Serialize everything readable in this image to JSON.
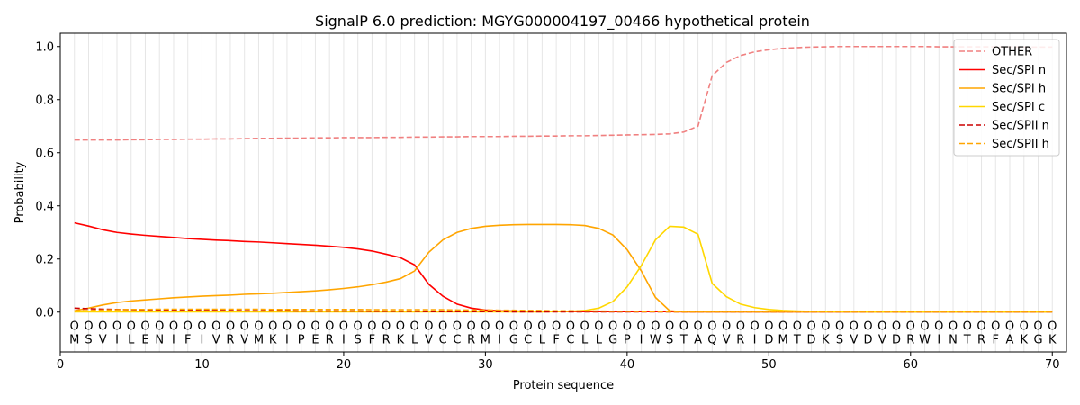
{
  "chart_data": {
    "type": "line",
    "title": "SignalP 6.0 prediction: MGYG000004197_00466 hypothetical protein",
    "xlabel": "Protein sequence",
    "ylabel": "Probability",
    "xlim": [
      0,
      71
    ],
    "ylim": [
      -0.15,
      1.05
    ],
    "x_ticks": [
      0,
      10,
      20,
      30,
      40,
      50,
      60,
      70
    ],
    "y_ticks": [
      0.0,
      0.2,
      0.4,
      0.6,
      0.8,
      1.0
    ],
    "x_tick_labels": [
      "0",
      "10",
      "20",
      "30",
      "40",
      "50",
      "60",
      "70"
    ],
    "y_tick_labels": [
      "0.0",
      "0.2",
      "0.4",
      "0.6",
      "0.8",
      "1.0"
    ],
    "grid": "vertical lines at each residue",
    "legend_position": "top-right",
    "sequence": "MSVILENIFIVRVMKIPERISFRKLVCCRMIGCLFCLLGPIWSTAQVRIDMTDKSVDVDRWINTRFAKGK",
    "region_marker": "O",
    "series": [
      {
        "name": "OTHER",
        "color": "#f08080",
        "dash": "dashed",
        "values": [
          0.648,
          0.648,
          0.648,
          0.648,
          0.649,
          0.649,
          0.65,
          0.65,
          0.651,
          0.651,
          0.652,
          0.652,
          0.653,
          0.654,
          0.654,
          0.655,
          0.655,
          0.656,
          0.656,
          0.657,
          0.657,
          0.657,
          0.658,
          0.658,
          0.659,
          0.659,
          0.66,
          0.66,
          0.661,
          0.661,
          0.661,
          0.662,
          0.662,
          0.663,
          0.663,
          0.664,
          0.664,
          0.665,
          0.666,
          0.667,
          0.668,
          0.669,
          0.671,
          0.678,
          0.7,
          0.89,
          0.94,
          0.966,
          0.98,
          0.988,
          0.993,
          0.996,
          0.998,
          0.999,
          1.0,
          1.0,
          1.0,
          1.0,
          1.0,
          1.0,
          1.0,
          0.999,
          0.999,
          0.999,
          0.999,
          0.999,
          0.999,
          0.998,
          0.998,
          0.998
        ]
      },
      {
        "name": "Sec/SPI n",
        "color": "#ff0000",
        "dash": "solid",
        "values": [
          0.336,
          0.324,
          0.31,
          0.3,
          0.294,
          0.289,
          0.285,
          0.281,
          0.277,
          0.274,
          0.271,
          0.269,
          0.266,
          0.264,
          0.261,
          0.258,
          0.255,
          0.252,
          0.248,
          0.244,
          0.238,
          0.23,
          0.218,
          0.205,
          0.178,
          0.105,
          0.06,
          0.03,
          0.015,
          0.008,
          0.005,
          0.004,
          0.003,
          0.003,
          0.002,
          0.002,
          0.002,
          0.002,
          0.002,
          0.002,
          0.002,
          0.002,
          0.002,
          0.001,
          0.001,
          0.001,
          0.001,
          0.001,
          0.001,
          0.001,
          0.001,
          0.001,
          0.001,
          0.001,
          0.001,
          0.001,
          0.001,
          0.001,
          0.001,
          0.001,
          0.001,
          0.001,
          0.001,
          0.001,
          0.001,
          0.001,
          0.001,
          0.001,
          0.001,
          0.001
        ]
      },
      {
        "name": "Sec/SPI h",
        "color": "#ffa500",
        "dash": "solid",
        "values": [
          0.005,
          0.015,
          0.027,
          0.036,
          0.042,
          0.046,
          0.05,
          0.054,
          0.057,
          0.06,
          0.062,
          0.064,
          0.067,
          0.069,
          0.071,
          0.074,
          0.077,
          0.08,
          0.084,
          0.089,
          0.095,
          0.103,
          0.113,
          0.126,
          0.155,
          0.225,
          0.272,
          0.3,
          0.315,
          0.323,
          0.327,
          0.329,
          0.33,
          0.33,
          0.33,
          0.329,
          0.326,
          0.315,
          0.29,
          0.235,
          0.155,
          0.055,
          0.005,
          0.001,
          0.001,
          0.001,
          0.001,
          0.001,
          0.001,
          0.001,
          0.001,
          0.001,
          0.001,
          0.001,
          0.001,
          0.001,
          0.001,
          0.001,
          0.001,
          0.001,
          0.001,
          0.001,
          0.001,
          0.001,
          0.001,
          0.001,
          0.001,
          0.001,
          0.001,
          0.001
        ]
      },
      {
        "name": "Sec/SPI c",
        "color": "#ffd700",
        "dash": "solid",
        "values": [
          0.001,
          0.001,
          0.001,
          0.001,
          0.001,
          0.001,
          0.001,
          0.001,
          0.001,
          0.001,
          0.001,
          0.001,
          0.001,
          0.001,
          0.001,
          0.001,
          0.001,
          0.001,
          0.001,
          0.001,
          0.001,
          0.001,
          0.001,
          0.001,
          0.001,
          0.001,
          0.001,
          0.001,
          0.001,
          0.001,
          0.001,
          0.001,
          0.001,
          0.001,
          0.002,
          0.003,
          0.006,
          0.015,
          0.04,
          0.095,
          0.175,
          0.272,
          0.323,
          0.32,
          0.293,
          0.108,
          0.058,
          0.03,
          0.017,
          0.01,
          0.006,
          0.004,
          0.003,
          0.002,
          0.002,
          0.001,
          0.001,
          0.001,
          0.001,
          0.001,
          0.001,
          0.001,
          0.001,
          0.001,
          0.001,
          0.001,
          0.001,
          0.001,
          0.001,
          0.001
        ]
      },
      {
        "name": "Sec/SPII n",
        "color": "#cc0000",
        "dash": "dashed",
        "values": [
          0.015,
          0.013,
          0.011,
          0.01,
          0.009,
          0.008,
          0.008,
          0.007,
          0.007,
          0.006,
          0.006,
          0.006,
          0.005,
          0.005,
          0.005,
          0.005,
          0.004,
          0.004,
          0.004,
          0.004,
          0.004,
          0.003,
          0.003,
          0.003,
          0.003,
          0.002,
          0.002,
          0.002,
          0.002,
          0.002,
          0.002,
          0.001,
          0.001,
          0.001,
          0.001,
          0.001,
          0.001,
          0.001,
          0.001,
          0.001,
          0.001,
          0.001,
          0.001,
          0.001,
          0.001,
          0.001,
          0.001,
          0.001,
          0.001,
          0.001,
          0.001,
          0.001,
          0.001,
          0.001,
          0.001,
          0.001,
          0.001,
          0.001,
          0.001,
          0.001,
          0.001,
          0.001,
          0.001,
          0.001,
          0.001,
          0.001,
          0.001,
          0.001,
          0.001,
          0.001
        ]
      },
      {
        "name": "Sec/SPII h",
        "color": "#ffa500",
        "dash": "dashed",
        "values": [
          0.004,
          0.006,
          0.008,
          0.009,
          0.01,
          0.01,
          0.011,
          0.011,
          0.011,
          0.011,
          0.011,
          0.011,
          0.011,
          0.011,
          0.01,
          0.01,
          0.01,
          0.01,
          0.01,
          0.01,
          0.01,
          0.009,
          0.009,
          0.009,
          0.009,
          0.009,
          0.009,
          0.008,
          0.008,
          0.008,
          0.007,
          0.007,
          0.006,
          0.006,
          0.005,
          0.005,
          0.004,
          0.004,
          0.003,
          0.003,
          0.002,
          0.002,
          0.001,
          0.001,
          0.001,
          0.001,
          0.001,
          0.001,
          0.001,
          0.001,
          0.001,
          0.001,
          0.001,
          0.001,
          0.001,
          0.001,
          0.001,
          0.001,
          0.001,
          0.001,
          0.001,
          0.001,
          0.001,
          0.001,
          0.001,
          0.001,
          0.001,
          0.001,
          0.001,
          0.001
        ]
      }
    ]
  }
}
